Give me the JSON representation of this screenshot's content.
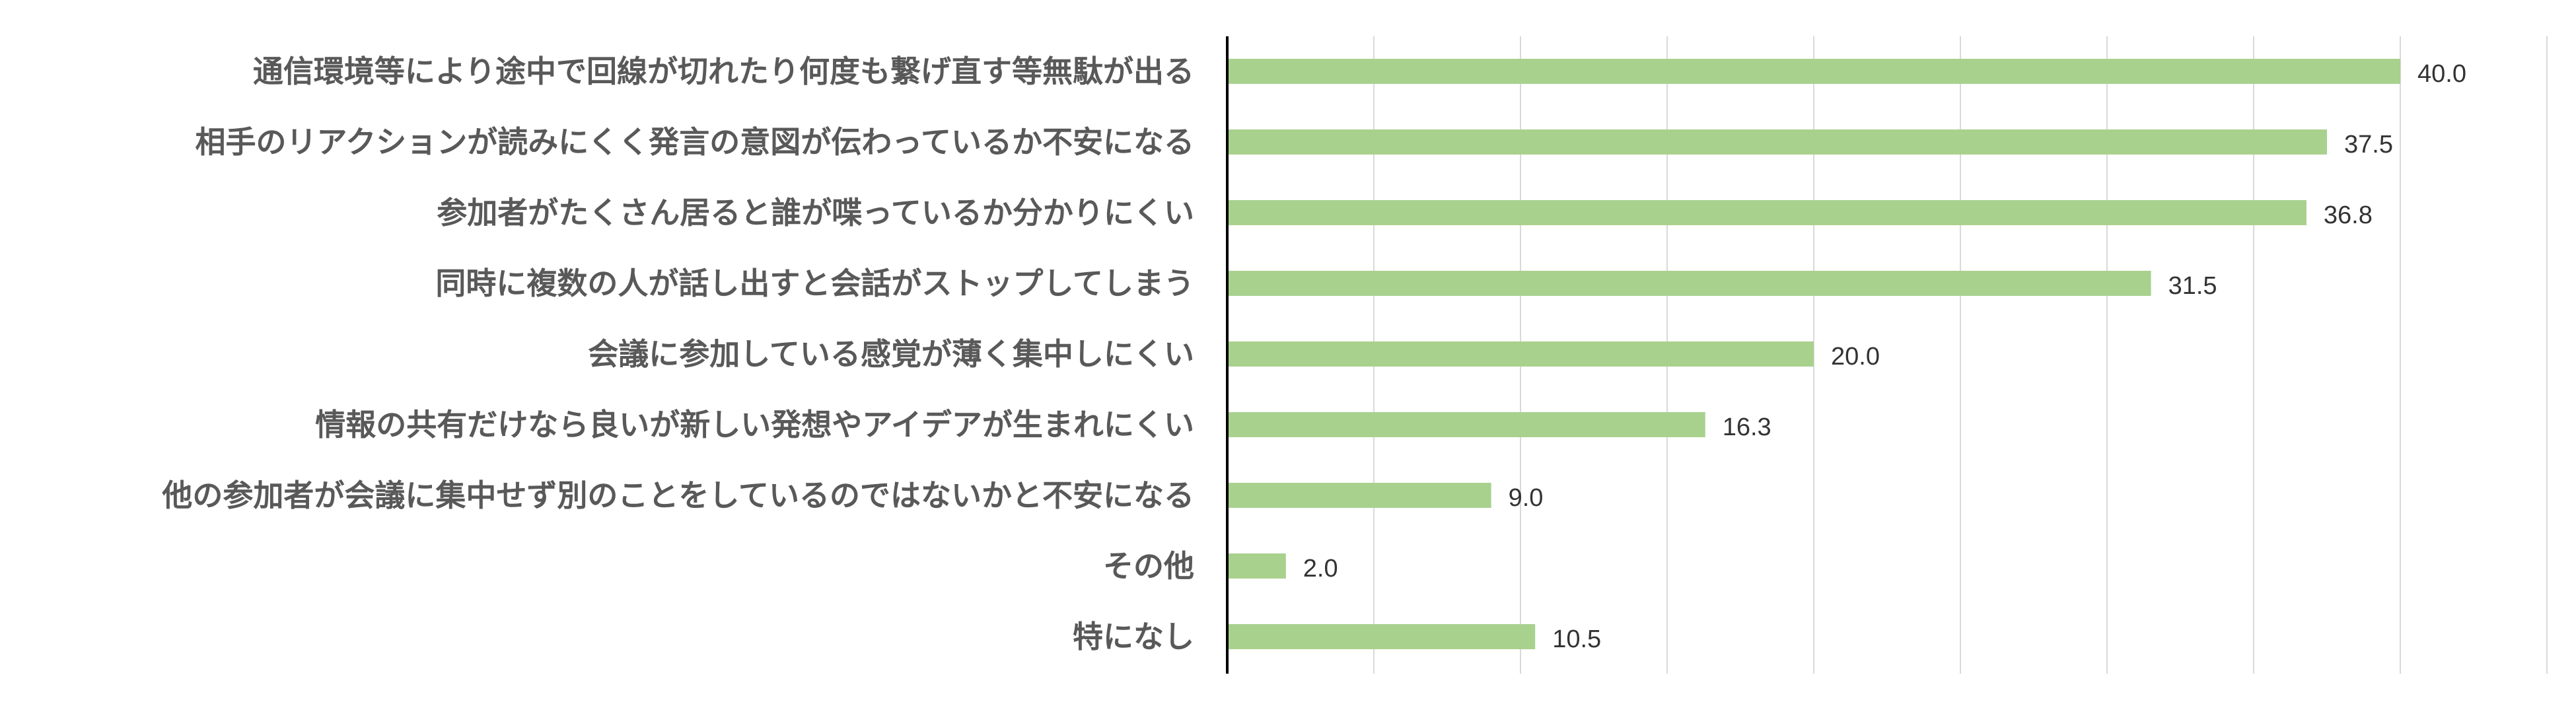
{
  "chart_data": {
    "type": "bar",
    "orientation": "horizontal",
    "title": "",
    "xlabel": "",
    "ylabel": "",
    "categories": [
      "通信環境等により途中で回線が切れたり何度も繋げ直す等無駄が出る",
      "相手のリアクションが読みにくく発言の意図が伝わっているか不安になる",
      "参加者がたくさん居ると誰が喋っているか分かりにくい",
      "同時に複数の人が話し出すと会話がストップしてしまう",
      "会議に参加している感覚が薄く集中しにくい",
      "情報の共有だけなら良いが新しい発想やアイデアが生まれにくい",
      "他の参加者が会議に集中せず別のことをしているのではないかと不安になる",
      "その他",
      "特になし"
    ],
    "values": [
      40.0,
      37.5,
      36.8,
      31.5,
      20.0,
      16.3,
      9.0,
      2.0,
      10.5
    ],
    "value_labels": [
      "40.0",
      "37.5",
      "36.8",
      "31.5",
      "20.0",
      "16.3",
      "9.0",
      "2.0",
      "10.5"
    ],
    "xlim": [
      0,
      45
    ],
    "grid": true,
    "grid_step": 5,
    "bar_color": "#a9d18e",
    "legend": "none"
  }
}
